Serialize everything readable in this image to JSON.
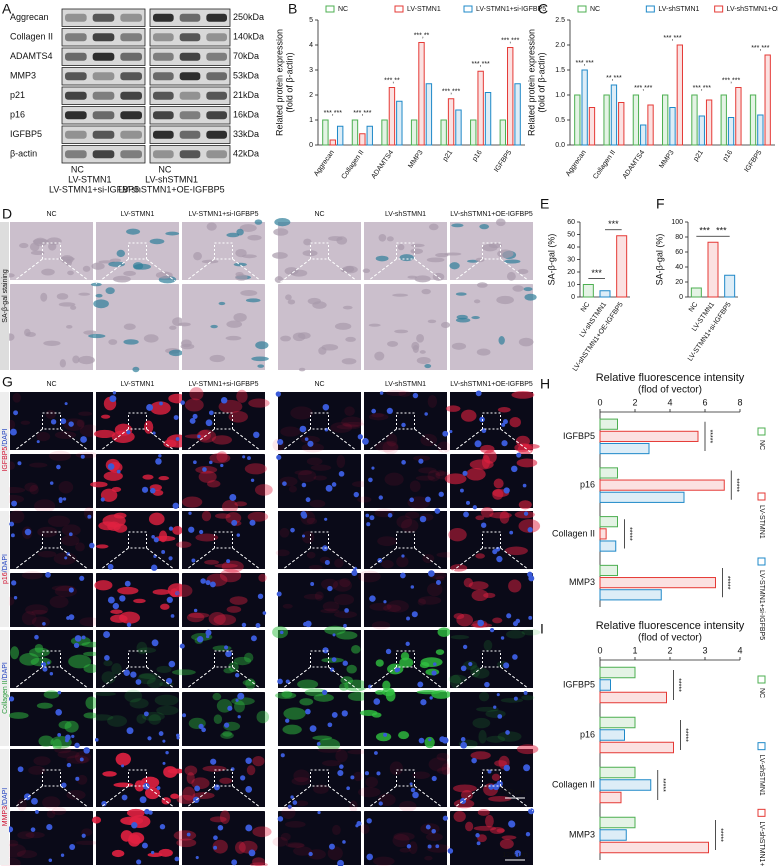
{
  "panels": [
    "A",
    "B",
    "C",
    "D",
    "E",
    "F",
    "G",
    "H",
    "I"
  ],
  "blot": {
    "proteins": [
      "Aggrecan",
      "Collagen II",
      "ADAMTS4",
      "MMP3",
      "p21",
      "p16",
      "IGFBP5",
      "β-actin"
    ],
    "sizes": [
      "250kDa",
      "140kDa",
      "70kDa",
      "53kDa",
      "21kDa",
      "16kDa",
      "33kDa",
      "42kDa"
    ],
    "groups": [
      [
        "NC",
        "LV-STMN1",
        "LV-STMN1+si-IGFBP5"
      ],
      [
        "NC",
        "LV-shSTMN1",
        "LV-shSTMN1+OE-IGFBP5"
      ]
    ]
  },
  "staining": {
    "label": "SA-β-gal staining",
    "groups": [
      [
        "NC",
        "LV-STMN1",
        "LV-STMN1+si-IGFBP5"
      ],
      [
        "NC",
        "LV-shSTMN1",
        "LV-shSTMN1+OE-IGFBP5"
      ]
    ]
  },
  "fluorescence": {
    "rows": [
      {
        "marker": "IGFBP5",
        "stain": "/DAPI"
      },
      {
        "marker": "p16",
        "stain": "/DAPI"
      },
      {
        "marker": "Collagen II",
        "stain": "/DAPI"
      },
      {
        "marker": "MMP3",
        "stain": "/DAPI"
      }
    ],
    "groups": [
      [
        "NC",
        "LV-STMN1",
        "LV-STMN1+si-IGFBP5"
      ],
      [
        "NC",
        "LV-shSTMN1",
        "LV-shSTMN1+OE-IGFBP5"
      ]
    ],
    "scales": [
      "50 μm",
      "12.5 μm"
    ]
  },
  "chart_data": [
    {
      "type": "bar",
      "ylabel": [
        "Related protein expression",
        "(fold of β-actin)"
      ],
      "categories": [
        "Aggrecan",
        "Collagen II",
        "ADAMTS4",
        "MMP3",
        "p21",
        "p16",
        "IGFBP5"
      ],
      "series": [
        {
          "name": "NC",
          "color": "#4caf50",
          "values": [
            1,
            1,
            1,
            1,
            1,
            1,
            1
          ]
        },
        {
          "name": "LV-STMN1",
          "color": "#e53935",
          "values": [
            0.2,
            0.45,
            2.3,
            4.1,
            1.85,
            2.95,
            3.9
          ]
        },
        {
          "name": "LV-STMN1+si-IGFBP5",
          "color": "#1e88c8",
          "values": [
            0.75,
            0.75,
            1.75,
            2.45,
            1.4,
            2.1,
            2.45
          ]
        }
      ],
      "ylim": [
        0,
        5
      ],
      "yticks": [
        0,
        1,
        2,
        3,
        4,
        5
      ],
      "legend": "top",
      "annotations": [
        "***,***",
        "***,***",
        "***,**",
        "***,**",
        "***,***",
        "***,***",
        "***,***"
      ]
    },
    {
      "type": "bar",
      "ylabel": [
        "Related protein expression",
        "(fold of β-actin)"
      ],
      "categories": [
        "Aggrecan",
        "Collagen II",
        "ADAMTS4",
        "MMP3",
        "p21",
        "p16",
        "IGFBP5"
      ],
      "series": [
        {
          "name": "NC",
          "color": "#4caf50",
          "values": [
            1,
            1,
            1,
            1,
            1,
            1,
            1
          ]
        },
        {
          "name": "LV-shSTMN1",
          "color": "#1e88c8",
          "values": [
            1.5,
            1.2,
            0.4,
            0.75,
            0.58,
            0.55,
            0.6
          ]
        },
        {
          "name": "LV-shSTMN1+OE-IGFBP5",
          "color": "#e53935",
          "values": [
            0.75,
            0.85,
            0.8,
            2.0,
            0.9,
            1.15,
            1.8
          ]
        }
      ],
      "ylim": [
        0,
        2.5
      ],
      "yticks": [
        {
          "value": 0,
          "label": "0.0"
        },
        0.5,
        {
          "value": 1,
          "label": "1.0"
        },
        1.5,
        {
          "value": 2,
          "label": "2.0"
        },
        2.5
      ],
      "legend": "top",
      "annotations": [
        "***,***",
        "**,***",
        "***,***",
        "***,***",
        "***,***",
        "***,***",
        "***,***"
      ]
    },
    {
      "type": "bar",
      "ylabel": [
        "SA-β-gal (%)"
      ],
      "categories": [
        "NC",
        "LV-shSTMN1",
        "LV-shSTMN1+OE-IGFBP5"
      ],
      "values": [
        10,
        5,
        49
      ],
      "colors": [
        "#4caf50",
        "#1e88c8",
        "#e53935"
      ],
      "ylim": [
        0,
        60
      ],
      "yticks": [
        0,
        10,
        20,
        30,
        40,
        50,
        60
      ],
      "annotations": [
        "***",
        "***"
      ]
    },
    {
      "type": "bar",
      "ylabel": [
        "SA-β-gal (%)"
      ],
      "categories": [
        "NC",
        "LV-STMN1",
        "LV-STMN1+si-IGFBP5"
      ],
      "values": [
        12,
        73,
        29
      ],
      "colors": [
        "#4caf50",
        "#e53935",
        "#1e88c8"
      ],
      "ylim": [
        0,
        100
      ],
      "yticks": [
        0,
        20,
        40,
        60,
        80,
        100
      ],
      "annotations": [
        "***",
        "***"
      ]
    },
    {
      "type": "bar",
      "orientation": "horizontal",
      "title": "Relative fluorescence intensity",
      "subtitle": "(flod of  vector)",
      "categories": [
        "IGFBP5",
        "p16",
        "Collagen II",
        "MMP3"
      ],
      "series": [
        {
          "name": "NC",
          "color": "#4caf50",
          "values": [
            1,
            1,
            1,
            1
          ]
        },
        {
          "name": "LV-STMN1",
          "color": "#e53935",
          "values": [
            5.6,
            7.1,
            0.35,
            6.6
          ]
        },
        {
          "name": "LV-STMN1+si-IGFBP5",
          "color": "#1e88c8",
          "values": [
            2.8,
            4.8,
            0.9,
            3.5
          ]
        }
      ],
      "xlim": [
        0,
        8
      ],
      "xticks": [
        0,
        2,
        4,
        6,
        8
      ],
      "legend": "right",
      "annotations": [
        "*****",
        "*****",
        "*****",
        "*****"
      ]
    },
    {
      "type": "bar",
      "orientation": "horizontal",
      "title": "Relative fluorescence intensity",
      "subtitle": "(flod of  vector)",
      "categories": [
        "IGFBP5",
        "p16",
        "Collagen II",
        "MMP3"
      ],
      "series": [
        {
          "name": "NC",
          "color": "#4caf50",
          "values": [
            1,
            1,
            1,
            1
          ]
        },
        {
          "name": "LV-shSTMN1",
          "color": "#1e88c8",
          "values": [
            0.3,
            0.7,
            1.45,
            0.75
          ]
        },
        {
          "name": "LV-shSTMN1+OE-IGFBP5",
          "color": "#e53935",
          "values": [
            1.9,
            2.1,
            0.6,
            3.1
          ]
        }
      ],
      "xlim": [
        0,
        4
      ],
      "xticks": [
        0,
        1,
        2,
        3,
        4
      ],
      "legend": "right",
      "annotations": [
        "*****",
        "*****",
        "*****",
        "*****"
      ]
    }
  ]
}
